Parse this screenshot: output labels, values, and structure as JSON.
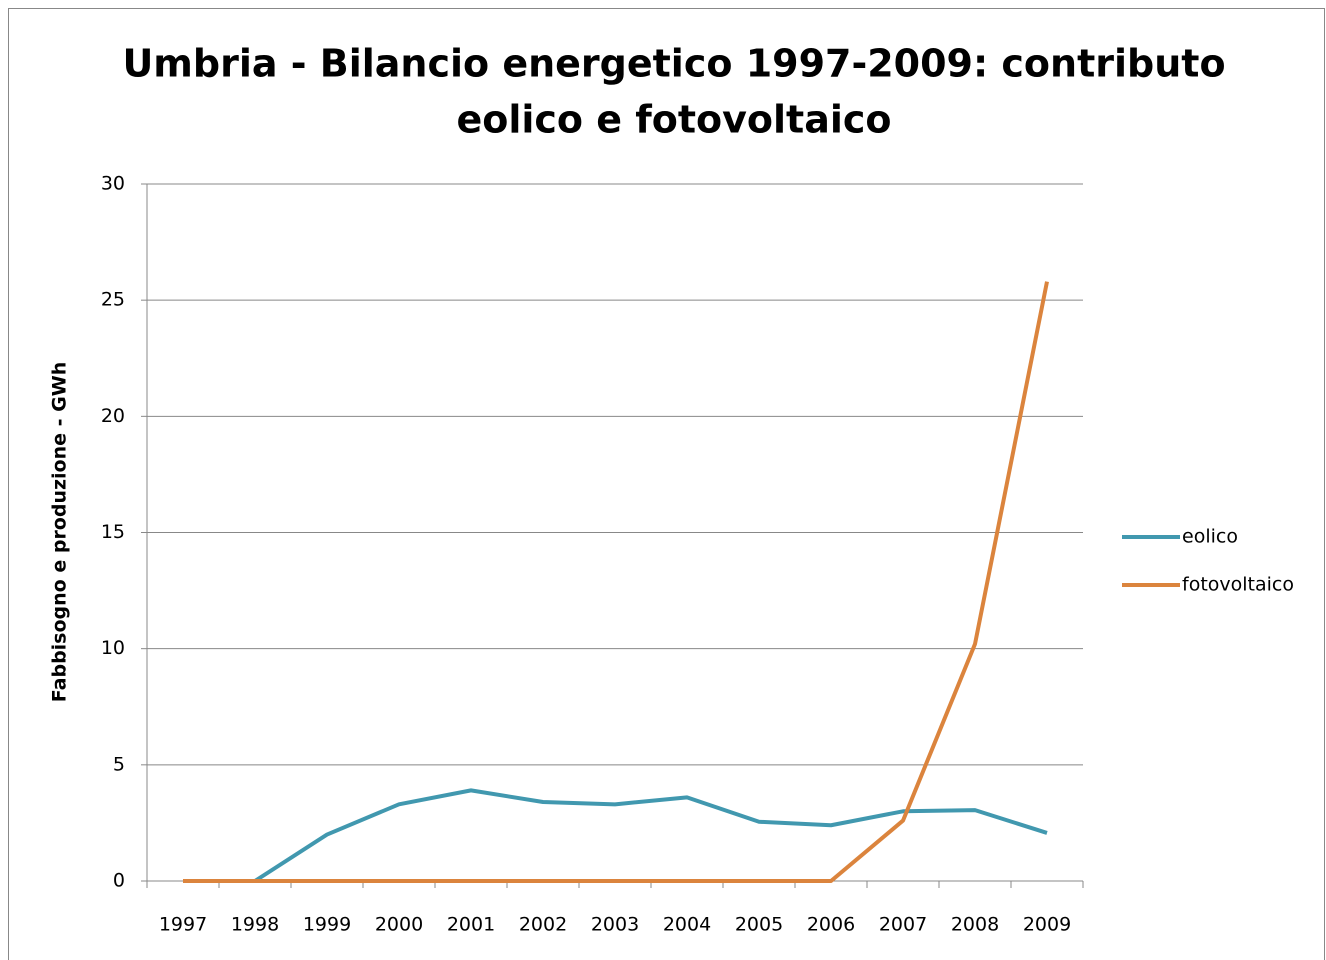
{
  "chart_data": {
    "type": "line",
    "title": [
      "Umbria - Bilancio energetico 1997-2009: contributo",
      "eolico e fotovoltaico"
    ],
    "y_label": "Fabbisogno e produzione - GWh",
    "categories": [
      "1997",
      "1998",
      "1999",
      "2000",
      "2001",
      "2002",
      "2003",
      "2004",
      "2005",
      "2006",
      "2007",
      "2008",
      "2009"
    ],
    "series": [
      {
        "name": "eolico",
        "color": "#4198af",
        "values": [
          0,
          0,
          2.0,
          3.3,
          3.9,
          3.4,
          3.3,
          3.6,
          2.55,
          2.4,
          3.0,
          3.05,
          2.07
        ]
      },
      {
        "name": "fotovoltaico",
        "color": "#db843d",
        "values": [
          0,
          0,
          0,
          0,
          0,
          0,
          0,
          0,
          0,
          0,
          2.6,
          10.2,
          25.8
        ]
      }
    ],
    "ylim": [
      0,
      30
    ],
    "yticks": [
      0,
      5,
      10,
      15,
      20,
      25,
      30
    ],
    "grid": true,
    "legend": "right"
  }
}
